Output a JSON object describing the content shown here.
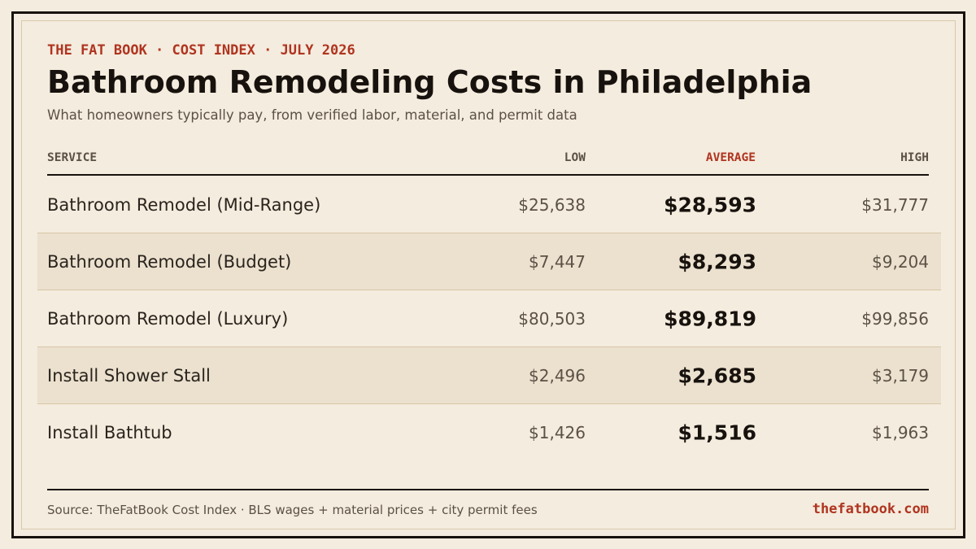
{
  "header": {
    "kicker": "THE FAT BOOK · COST INDEX · JULY 2026",
    "title": "Bathroom Remodeling Costs in Philadelphia",
    "subtitle": "What homeowners typically pay, from verified labor, material, and permit data"
  },
  "table": {
    "columns": {
      "service": "SERVICE",
      "low": "LOW",
      "average": "AVERAGE",
      "high": "HIGH"
    },
    "rows": [
      {
        "service": "Bathroom Remodel (Mid-Range)",
        "low": "$25,638",
        "average": "$28,593",
        "high": "$31,777"
      },
      {
        "service": "Bathroom Remodel (Budget)",
        "low": "$7,447",
        "average": "$8,293",
        "high": "$9,204"
      },
      {
        "service": "Bathroom Remodel (Luxury)",
        "low": "$80,503",
        "average": "$89,819",
        "high": "$99,856"
      },
      {
        "service": "Install Shower Stall",
        "low": "$2,496",
        "average": "$2,685",
        "high": "$3,179"
      },
      {
        "service": "Install Bathtub",
        "low": "$1,426",
        "average": "$1,516",
        "high": "$1,963"
      }
    ]
  },
  "footer": {
    "source": "Source: TheFatBook Cost Index · BLS wages + material prices + city permit fees",
    "site": "thefatbook.com"
  },
  "colors": {
    "background": "#f4ecde",
    "accent": "#b03420",
    "ink": "#17120d",
    "row_shade": "#ece1cf"
  }
}
